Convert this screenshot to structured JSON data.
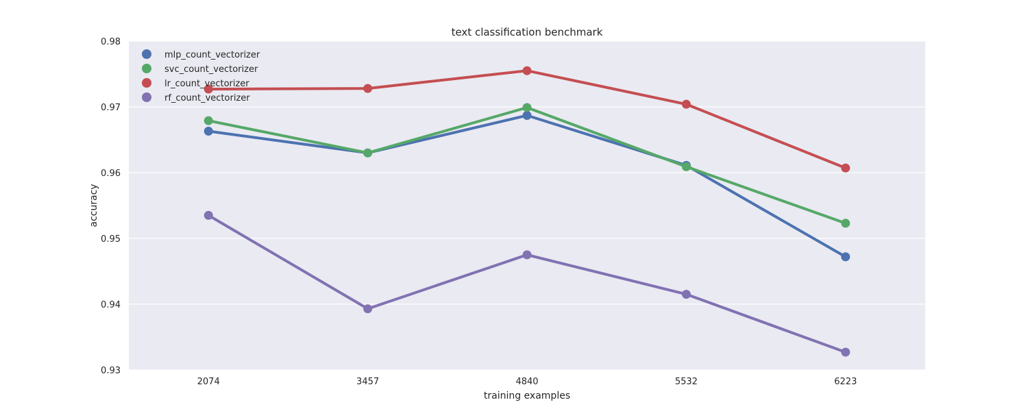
{
  "chart_data": {
    "type": "line",
    "title": "text classification benchmark",
    "xlabel": "training examples",
    "ylabel": "accuracy",
    "categories": [
      "2074",
      "3457",
      "4840",
      "5532",
      "6223"
    ],
    "ylim": [
      0.93,
      0.98
    ],
    "yticks": [
      "0.93",
      "0.94",
      "0.95",
      "0.96",
      "0.97",
      "0.98"
    ],
    "grid": true,
    "legend_position": "top-left",
    "series": [
      {
        "name": "mlp_count_vectorizer",
        "color": "#4c72b0",
        "values": [
          0.9663,
          0.963,
          0.9687,
          0.9611,
          0.9472
        ]
      },
      {
        "name": "svc_count_vectorizer",
        "color": "#55a868",
        "values": [
          0.9679,
          0.963,
          0.9699,
          0.9609,
          0.9523
        ]
      },
      {
        "name": "lr_count_vectorizer",
        "color": "#c44e52",
        "values": [
          0.9727,
          0.9728,
          0.9755,
          0.9704,
          0.9607
        ]
      },
      {
        "name": "rf_count_vectorizer",
        "color": "#8172b2",
        "values": [
          0.9535,
          0.9393,
          0.9475,
          0.9415,
          0.9327
        ]
      }
    ]
  }
}
